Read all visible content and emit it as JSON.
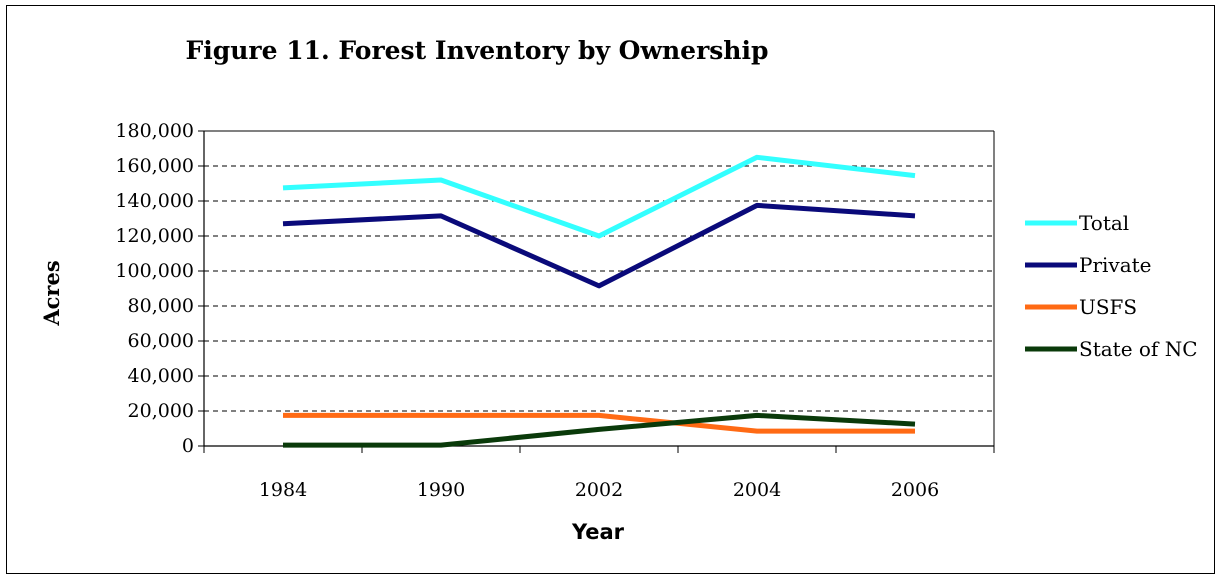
{
  "chart_data": {
    "type": "line",
    "title": "Figure 11. Forest Inventory by Ownership",
    "xlabel": "Year",
    "ylabel": "Acres",
    "categories": [
      "1984",
      "1990",
      "2002",
      "2004",
      "2006"
    ],
    "ylim": [
      0,
      180000
    ],
    "yticks": [
      0,
      20000,
      40000,
      60000,
      80000,
      100000,
      120000,
      140000,
      160000,
      180000
    ],
    "ytick_labels": [
      "0",
      "20,000",
      "40,000",
      "60,000",
      "80,000",
      "100,000",
      "120,000",
      "140,000",
      "160,000",
      "180,000"
    ],
    "grid": "horizontal dashed",
    "legend_position": "right",
    "series": [
      {
        "name": "Total",
        "color": "#33FFFF",
        "values": [
          147500,
          152000,
          120000,
          165000,
          154500
        ]
      },
      {
        "name": "Private",
        "color": "#0A0A7A",
        "values": [
          127000,
          131500,
          91500,
          137500,
          131500
        ]
      },
      {
        "name": "USFS",
        "color": "#FF6A14",
        "values": [
          17500,
          17500,
          17500,
          8500,
          8500
        ]
      },
      {
        "name": "State of NC",
        "color": "#0A3A0A",
        "values": [
          500,
          500,
          9500,
          17500,
          12500
        ]
      }
    ]
  }
}
